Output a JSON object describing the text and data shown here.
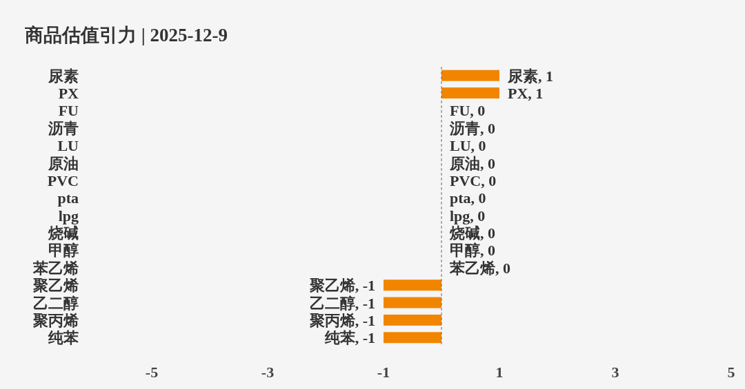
{
  "chart_data": {
    "type": "bar",
    "orientation": "horizontal",
    "title": "商品估值引力 | 2025-12-9",
    "categories": [
      "尿素",
      "PX",
      "FU",
      "沥青",
      "LU",
      "原油",
      "PVC",
      "pta",
      "lpg",
      "烧碱",
      "甲醇",
      "苯乙烯",
      "聚乙烯",
      "乙二醇",
      "聚丙烯",
      "纯苯"
    ],
    "values": [
      1,
      1,
      0,
      0,
      0,
      0,
      0,
      0,
      0,
      0,
      0,
      0,
      -1,
      -1,
      -1,
      -1
    ],
    "color": "#f28500",
    "value_labels": [
      "尿素, 1",
      "PX, 1",
      "FU, 0",
      "沥青, 0",
      "LU, 0",
      "原油, 0",
      "PVC, 0",
      "pta, 0",
      "lpg, 0",
      "烧碱, 0",
      "甲醇, 0",
      "苯乙烯, 0",
      "聚乙烯, -1",
      "乙二醇, -1",
      "聚丙烯, -1",
      "纯苯, -1"
    ],
    "xlim": [
      -5,
      5
    ],
    "xticks": [
      -5,
      -3,
      -1,
      1,
      3,
      5
    ],
    "ref_lines": [
      {
        "axis": "x",
        "value": 0,
        "color": "#666666",
        "line_style": "dashed"
      }
    ],
    "grid": false
  }
}
